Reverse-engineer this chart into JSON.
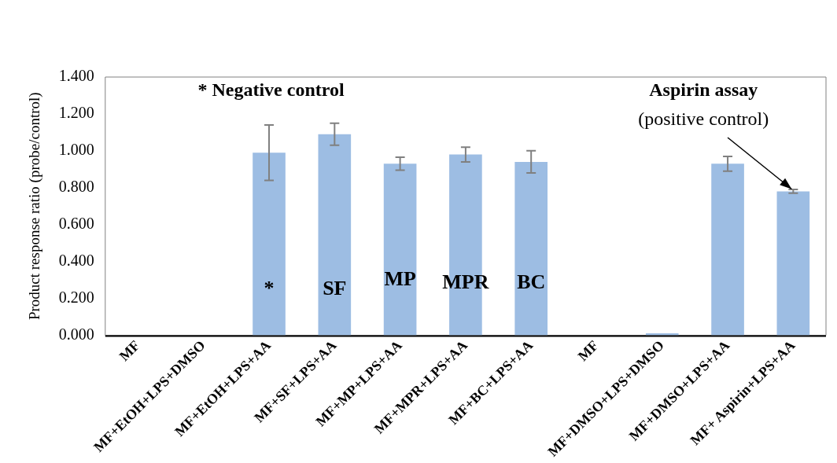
{
  "chart_data": {
    "type": "bar",
    "ylabel": "Product response ratio (probe/control)",
    "categories": [
      "MF",
      "MF+EtOH+LPS+DMSO",
      "MF+EtOH+LPS+AA",
      "MF+SF+LPS+AA",
      "MF+MP+LPS+AA",
      "MF+MPR+LPS+AA",
      "MF+BC+LPS+AA",
      "MF",
      "MF+DMSO+LPS+DMSO",
      "MF+DMSO+LPS+AA",
      "MF+ Aspirin+LPS+AA"
    ],
    "values": [
      0,
      null,
      0.99,
      1.09,
      0.93,
      0.98,
      0.94,
      0,
      0.01,
      0.93,
      0.78
    ],
    "errors": [
      null,
      null,
      0.15,
      0.06,
      0.035,
      0.04,
      0.06,
      null,
      null,
      0.04,
      0.01
    ],
    "color": "#9dbde3",
    "ylim": [
      0,
      1.4
    ],
    "yticks": [
      {
        "value": 0,
        "label": "0.000"
      },
      {
        "value": 0.2,
        "label": "0.200"
      },
      {
        "value": 0.4,
        "label": "0.400"
      },
      {
        "value": 0.6,
        "label": "0.600"
      },
      {
        "value": 0.8,
        "label": "0.800"
      },
      {
        "value": 1,
        "label": "1.000"
      },
      {
        "value": 1.2,
        "label": "1.200"
      },
      {
        "value": 1.4,
        "label": "1.400"
      }
    ],
    "grid": false,
    "legend": false,
    "annotations": [
      "* Negative control",
      "Aspirin assay",
      {
        "text": "(positive control)",
        "x": "MF+ Aspirin+LPS+AA",
        "y": 0.78
      },
      "*",
      "SF",
      "MP",
      "MPR",
      "BC"
    ]
  }
}
